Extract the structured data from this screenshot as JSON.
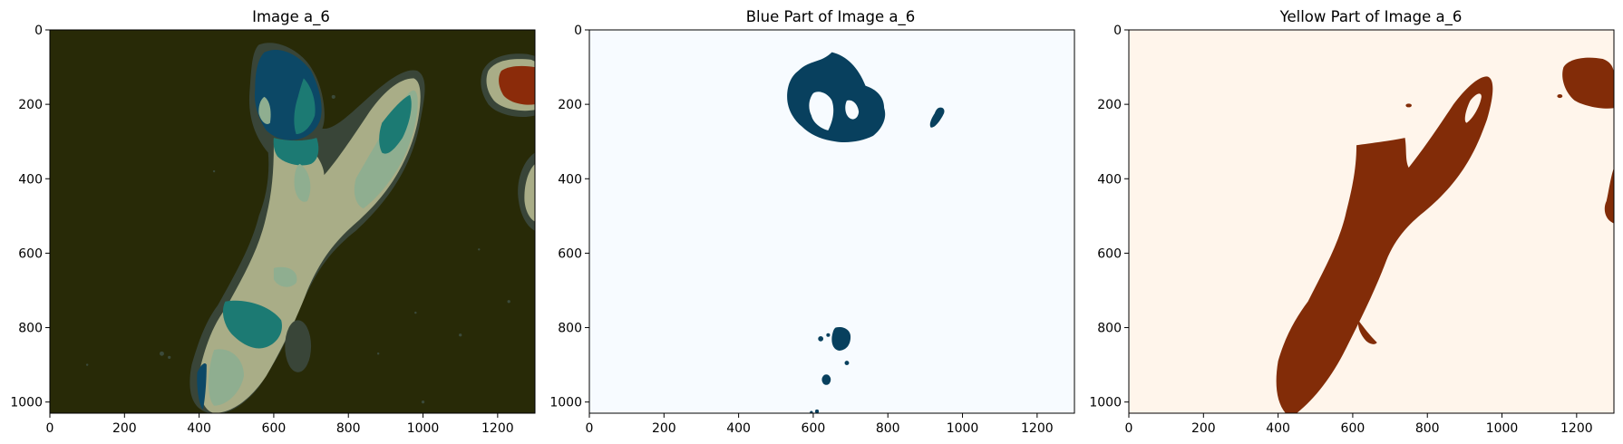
{
  "figure": {
    "colors": {
      "background": "#ffffff",
      "axis": "#000000"
    }
  },
  "chart_data": [
    {
      "type": "image",
      "title": "Image a_6",
      "xlim": [
        0,
        1300
      ],
      "ylim": [
        1030,
        0
      ],
      "xticks": [
        0,
        200,
        400,
        600,
        800,
        1000,
        1200
      ],
      "yticks": [
        0,
        200,
        400,
        600,
        800,
        1000
      ],
      "xtick_labels": [
        "0",
        "200",
        "400",
        "600",
        "800",
        "1000",
        "1200"
      ],
      "ytick_labels": [
        "0",
        "200",
        "400",
        "600",
        "800",
        "1000"
      ],
      "background_color": "#282a07",
      "palette": {
        "dark_olive": "#282a07",
        "slate": "#394538",
        "navy": "#0c4866",
        "teal": "#1c7a73",
        "sage": "#8fae90",
        "khaki": "#a9ad87",
        "rust": "#8b2b0a"
      }
    },
    {
      "type": "image",
      "title": "Blue Part of Image a_6",
      "xlim": [
        0,
        1300
      ],
      "ylim": [
        1030,
        0
      ],
      "xticks": [
        0,
        200,
        400,
        600,
        800,
        1000,
        1200
      ],
      "yticks": [
        0,
        200,
        400,
        600,
        800,
        1000
      ],
      "xtick_labels": [
        "0",
        "200",
        "400",
        "600",
        "800",
        "1000",
        "1200"
      ],
      "ytick_labels": [
        "0",
        "200",
        "400",
        "600",
        "800",
        "1000"
      ],
      "background_color": "#f7fbff",
      "mask_color": "#08405e"
    },
    {
      "type": "image",
      "title": "Yellow Part of Image a_6",
      "xlim": [
        0,
        1300
      ],
      "ylim": [
        1030,
        0
      ],
      "xticks": [
        0,
        200,
        400,
        600,
        800,
        1000,
        1200
      ],
      "yticks": [
        0,
        200,
        400,
        600,
        800,
        1000
      ],
      "xtick_labels": [
        "0",
        "200",
        "400",
        "600",
        "800",
        "1000",
        "1200"
      ],
      "ytick_labels": [
        "0",
        "200",
        "400",
        "600",
        "800",
        "1000"
      ],
      "background_color": "#fff5eb",
      "mask_color": "#822c08"
    }
  ]
}
